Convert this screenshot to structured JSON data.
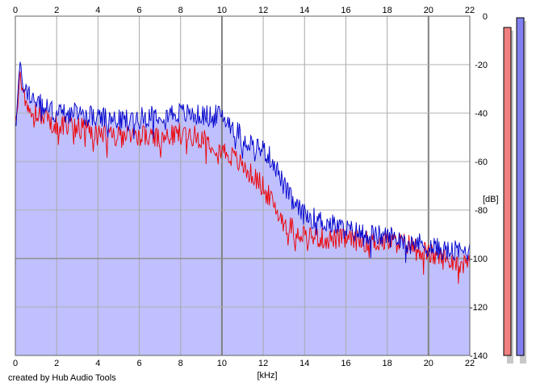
{
  "chart_data": {
    "type": "area",
    "xlabel": "[kHz]",
    "ylabel": "[dB]",
    "xlim": [
      0,
      22
    ],
    "ylim": [
      -140,
      0
    ],
    "x_ticks": [
      "0",
      "2",
      "4",
      "6",
      "8",
      "10",
      "12",
      "14",
      "16",
      "18",
      "20",
      "22"
    ],
    "y_ticks": [
      "0",
      "-20",
      "-40",
      "-60",
      "-80",
      "-100",
      "-120",
      "-140"
    ],
    "grid": true,
    "series": [
      {
        "color": "#0000cc",
        "x": [
          0.05,
          0.2,
          0.4,
          0.6,
          0.8,
          1.0,
          1.5,
          2.0,
          3.0,
          4.0,
          5.0,
          6.0,
          7.0,
          8.0,
          9.0,
          10.0,
          10.5,
          11.0,
          11.5,
          12.0,
          12.5,
          13.0,
          13.5,
          14.0,
          15.0,
          16.0,
          17.0,
          18.0,
          19.0,
          20.0,
          21.0,
          22.0
        ],
        "values": [
          -42,
          -22,
          -28,
          -32,
          -33,
          -35,
          -38,
          -40,
          -40,
          -42,
          -43,
          -42,
          -40,
          -40,
          -41,
          -41,
          -45,
          -50,
          -53,
          -55,
          -60,
          -70,
          -78,
          -82,
          -85,
          -88,
          -90,
          -91,
          -92,
          -95,
          -97,
          -97
        ]
      },
      {
        "color": "#ee0000",
        "x": [
          0.05,
          0.2,
          0.4,
          0.6,
          0.8,
          1.0,
          1.5,
          2.0,
          3.0,
          4.0,
          5.0,
          6.0,
          7.0,
          8.0,
          9.0,
          10.0,
          10.5,
          11.0,
          11.5,
          12.0,
          12.5,
          13.0,
          13.5,
          14.0,
          15.0,
          16.0,
          17.0,
          18.0,
          19.0,
          20.0,
          21.0,
          22.0
        ],
        "values": [
          -44,
          -26,
          -32,
          -36,
          -38,
          -40,
          -42,
          -45,
          -46,
          -48,
          -50,
          -49,
          -51,
          -48,
          -50,
          -55,
          -58,
          -62,
          -66,
          -70,
          -78,
          -85,
          -88,
          -90,
          -92,
          -92,
          -93,
          -93,
          -94,
          -98,
          -101,
          -100
        ]
      }
    ],
    "meter": {
      "left_color": "#f08080",
      "right_color": "#8080f0"
    }
  },
  "footer": {
    "credit": "created by Hub Audio Tools"
  }
}
